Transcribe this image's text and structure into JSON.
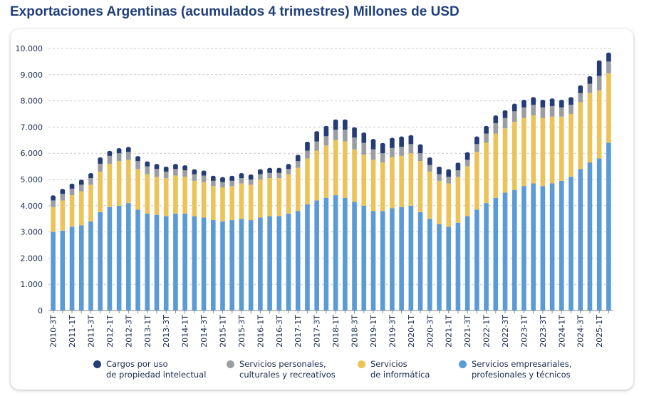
{
  "title": "Exportaciones Argentinas (acumulados 4 trimestres) Millones de USD",
  "chart_data": {
    "type": "bar",
    "stacked": true,
    "ylim": [
      0,
      10000
    ],
    "yticks": [
      "0",
      "1.000",
      "2.000",
      "3.000",
      "4.000",
      "5.000",
      "6.000",
      "7.000",
      "8.000",
      "9.000",
      "10.000"
    ],
    "grid": "horizontal dashed",
    "legend_position": "bottom",
    "categories": [
      "2010-3T",
      "2010-4T",
      "2011-1T",
      "2011-2T",
      "2011-3T",
      "2011-4T",
      "2012-1T",
      "2012-2T",
      "2012-3T",
      "2012-4T",
      "2013-1T",
      "2013-2T",
      "2013-3T",
      "2013-4T",
      "2014-1T",
      "2014-2T",
      "2014-3T",
      "2014-4T",
      "2015-1T",
      "2015-2T",
      "2015-3T",
      "2015-4T",
      "2016-1T",
      "2016-2T",
      "2016-3T",
      "2016-4T",
      "2017-1T",
      "2017-2T",
      "2017-3T",
      "2017-4T",
      "2018-1T",
      "2018-2T",
      "2018-3T",
      "2018-4T",
      "2019-1T",
      "2019-2T",
      "2019-3T",
      "2019-4T",
      "2020-1T",
      "2020-2T",
      "2020-3T",
      "2020-4T",
      "2021-1T",
      "2021-2T",
      "2021-3T",
      "2021-4T",
      "2022-1T",
      "2022-2T",
      "2022-3T",
      "2022-4T",
      "2023-1T",
      "2023-2T",
      "2023-3T",
      "2023-4T",
      "2024-1T",
      "2024-2T",
      "2024-3T",
      "2024-4T",
      "2025-1T",
      "2025-2T"
    ],
    "xtick_labels": [
      "2010-3T",
      "2011-1T",
      "2011-3T",
      "2012-1T",
      "2012-3T",
      "2013-1T",
      "2013-3T",
      "2014-1T",
      "2014-3T",
      "2015-1T",
      "2015-3T",
      "2016-1T",
      "2016-3T",
      "2017-1T",
      "2017-3T",
      "2018-1T",
      "2018-3T",
      "2019-1T",
      "2019-3T",
      "2020-1T",
      "2020-3T",
      "2021-1T",
      "2021-3T",
      "2022-1T",
      "2022-3T",
      "2023-1T",
      "2023-3T",
      "2024-1T",
      "2024-3T",
      "2025-1T"
    ],
    "series": [
      {
        "name": "Servicios empresariales, profesionales y técnicos",
        "color": "#5b9bd5",
        "values": [
          3000,
          3050,
          3200,
          3250,
          3400,
          3750,
          3950,
          4000,
          4100,
          3850,
          3700,
          3650,
          3600,
          3700,
          3700,
          3600,
          3550,
          3450,
          3400,
          3450,
          3500,
          3450,
          3550,
          3600,
          3600,
          3700,
          3800,
          4050,
          4200,
          4300,
          4400,
          4300,
          4150,
          4000,
          3800,
          3800,
          3900,
          3950,
          4000,
          3750,
          3500,
          3300,
          3200,
          3350,
          3600,
          3850,
          4100,
          4300,
          4500,
          4600,
          4750,
          4850,
          4750,
          4850,
          4950,
          5100,
          5400,
          5650,
          5800,
          6400
        ]
      },
      {
        "name": "Servicios de informática",
        "color": "#ecc359",
        "values": [
          950,
          1150,
          1200,
          1300,
          1400,
          1550,
          1650,
          1700,
          1650,
          1550,
          1500,
          1450,
          1450,
          1450,
          1400,
          1350,
          1350,
          1300,
          1300,
          1300,
          1350,
          1350,
          1450,
          1450,
          1450,
          1500,
          1650,
          1750,
          1900,
          2000,
          2100,
          2150,
          2000,
          1950,
          1950,
          1850,
          1950,
          1950,
          2000,
          1950,
          1800,
          1650,
          1650,
          1750,
          1900,
          2200,
          2300,
          2450,
          2450,
          2600,
          2600,
          2600,
          2600,
          2550,
          2450,
          2400,
          2550,
          2650,
          2600,
          2650
        ]
      },
      {
        "name": "Servicios personales, culturales y recreativos",
        "color": "#9a9ea3",
        "values": [
          250,
          250,
          250,
          250,
          250,
          300,
          300,
          300,
          300,
          300,
          300,
          300,
          250,
          250,
          250,
          250,
          250,
          200,
          200,
          200,
          200,
          200,
          200,
          200,
          200,
          200,
          250,
          300,
          350,
          350,
          400,
          450,
          450,
          450,
          400,
          350,
          350,
          350,
          350,
          300,
          250,
          250,
          250,
          250,
          250,
          300,
          350,
          400,
          400,
          400,
          400,
          400,
          400,
          400,
          350,
          350,
          350,
          350,
          550,
          450
        ]
      },
      {
        "name": "Cargos por uso de propiedad intelectual",
        "color": "#253c74",
        "values": [
          150,
          150,
          150,
          150,
          150,
          200,
          150,
          150,
          150,
          150,
          150,
          150,
          150,
          150,
          150,
          150,
          150,
          150,
          150,
          150,
          150,
          150,
          150,
          150,
          150,
          150,
          200,
          300,
          350,
          350,
          350,
          350,
          350,
          350,
          350,
          350,
          350,
          350,
          300,
          300,
          250,
          250,
          250,
          250,
          250,
          250,
          250,
          250,
          250,
          250,
          250,
          250,
          250,
          250,
          250,
          250,
          250,
          250,
          550,
          300
        ]
      }
    ]
  },
  "legend": [
    {
      "key": "intellectual",
      "line1": "Cargos por uso",
      "line2": "de propiedad intelectual",
      "color": "#253c74"
    },
    {
      "key": "personal",
      "line1": "Servicios personales,",
      "line2": "culturales y recreativos",
      "color": "#9a9ea3"
    },
    {
      "key": "informatica",
      "line1": "Servicios",
      "line2": "de informática",
      "color": "#ecc359"
    },
    {
      "key": "empresariales",
      "line1": "Servicios empresariales,",
      "line2": "profesionales y técnicos",
      "color": "#5b9bd5"
    }
  ]
}
